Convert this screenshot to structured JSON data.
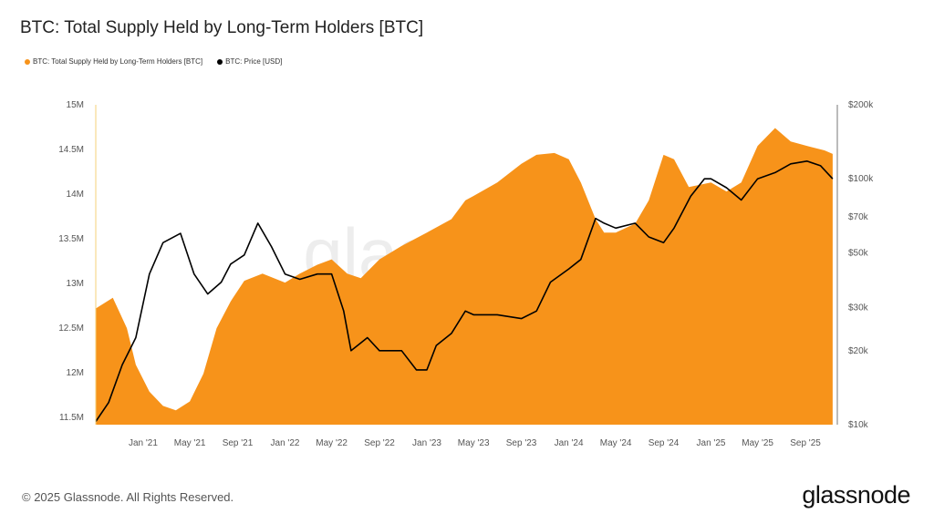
{
  "title": "BTC: Total Supply Held by Long-Term Holders [BTC]",
  "legend": [
    {
      "label": "BTC: Total Supply Held by Long-Term Holders [BTC]",
      "color": "#f7931a"
    },
    {
      "label": "BTC: Price [USD]",
      "color": "#000000"
    }
  ],
  "footer": "© 2025 Glassnode. All Rights Reserved.",
  "logo": "glassnode",
  "watermark": "glassnode",
  "chart_data": {
    "type": "area+line",
    "title": "BTC: Total Supply Held by Long-Term Holders [BTC]",
    "x_range": [
      "2020-09-01",
      "2025-11-15"
    ],
    "x_ticks": [
      {
        "date": "2021-01-01",
        "label": "Jan '21"
      },
      {
        "date": "2021-05-01",
        "label": "May '21"
      },
      {
        "date": "2021-09-01",
        "label": "Sep '21"
      },
      {
        "date": "2022-01-01",
        "label": "Jan '22"
      },
      {
        "date": "2022-05-01",
        "label": "May '22"
      },
      {
        "date": "2022-09-01",
        "label": "Sep '22"
      },
      {
        "date": "2023-01-01",
        "label": "Jan '23"
      },
      {
        "date": "2023-05-01",
        "label": "May '23"
      },
      {
        "date": "2023-09-01",
        "label": "Sep '23"
      },
      {
        "date": "2024-01-01",
        "label": "Jan '24"
      },
      {
        "date": "2024-05-01",
        "label": "May '24"
      },
      {
        "date": "2024-09-01",
        "label": "Sep '24"
      },
      {
        "date": "2025-01-01",
        "label": "Jan '25"
      },
      {
        "date": "2025-05-01",
        "label": "May '25"
      },
      {
        "date": "2025-09-01",
        "label": "Sep '25"
      }
    ],
    "left_axis": {
      "unit": "BTC (millions)",
      "ylim": [
        11.42,
        15
      ],
      "scale": "linear",
      "ticks": [
        {
          "v": 15,
          "label": "15M"
        },
        {
          "v": 14.5,
          "label": "14.5M"
        },
        {
          "v": 14,
          "label": "14M"
        },
        {
          "v": 13.5,
          "label": "13.5M"
        },
        {
          "v": 13,
          "label": "13M"
        },
        {
          "v": 12.5,
          "label": "12.5M"
        },
        {
          "v": 12,
          "label": "12M"
        },
        {
          "v": 11.5,
          "label": "11.5M"
        }
      ]
    },
    "right_axis": {
      "unit": "USD (thousands)",
      "ylim": [
        10,
        200
      ],
      "scale": "log",
      "ticks": [
        {
          "v": 200,
          "label": "$200k"
        },
        {
          "v": 100,
          "label": "$100k"
        },
        {
          "v": 70,
          "label": "$70k"
        },
        {
          "v": 50,
          "label": "$50k"
        },
        {
          "v": 30,
          "label": "$30k"
        },
        {
          "v": 20,
          "label": "$20k"
        },
        {
          "v": 10,
          "label": "$10k"
        }
      ]
    },
    "grid": false,
    "legend_position": "top-left",
    "series": [
      {
        "name": "BTC: Total Supply Held by Long-Term Holders [BTC]",
        "type": "area",
        "axis": "left",
        "color": "#f7931a",
        "points": [
          [
            "2020-09-01",
            12.72
          ],
          [
            "2020-10-15",
            12.84
          ],
          [
            "2020-11-20",
            12.5
          ],
          [
            "2020-12-13",
            12.09
          ],
          [
            "2021-01-17",
            11.79
          ],
          [
            "2021-02-21",
            11.63
          ],
          [
            "2021-03-26",
            11.58
          ],
          [
            "2021-05-01",
            11.68
          ],
          [
            "2021-06-05",
            11.99
          ],
          [
            "2021-07-09",
            12.5
          ],
          [
            "2021-08-14",
            12.8
          ],
          [
            "2021-09-18",
            13.03
          ],
          [
            "2021-11-04",
            13.11
          ],
          [
            "2022-01-01",
            13.01
          ],
          [
            "2022-02-08",
            13.11
          ],
          [
            "2022-03-25",
            13.21
          ],
          [
            "2022-05-01",
            13.27
          ],
          [
            "2022-06-10",
            13.11
          ],
          [
            "2022-07-15",
            13.06
          ],
          [
            "2022-09-01",
            13.27
          ],
          [
            "2022-10-28",
            13.42
          ],
          [
            "2023-01-01",
            13.57
          ],
          [
            "2023-03-05",
            13.72
          ],
          [
            "2023-04-10",
            13.93
          ],
          [
            "2023-05-01",
            13.98
          ],
          [
            "2023-07-01",
            14.13
          ],
          [
            "2023-09-01",
            14.34
          ],
          [
            "2023-10-10",
            14.44
          ],
          [
            "2023-11-25",
            14.46
          ],
          [
            "2024-01-01",
            14.39
          ],
          [
            "2024-02-01",
            14.13
          ],
          [
            "2024-03-10",
            13.72
          ],
          [
            "2024-04-01",
            13.57
          ],
          [
            "2024-05-01",
            13.57
          ],
          [
            "2024-06-20",
            13.67
          ],
          [
            "2024-07-25",
            13.93
          ],
          [
            "2024-09-01",
            14.44
          ],
          [
            "2024-09-28",
            14.39
          ],
          [
            "2024-11-05",
            14.08
          ],
          [
            "2025-01-01",
            14.13
          ],
          [
            "2025-02-10",
            14.03
          ],
          [
            "2025-03-20",
            14.13
          ],
          [
            "2025-05-01",
            14.54
          ],
          [
            "2025-06-15",
            14.74
          ],
          [
            "2025-07-25",
            14.59
          ],
          [
            "2025-09-05",
            14.54
          ],
          [
            "2025-10-20",
            14.49
          ],
          [
            "2025-11-10",
            14.45
          ]
        ]
      },
      {
        "name": "BTC: Price [USD]",
        "type": "line",
        "axis": "right",
        "color": "#000000",
        "points": [
          [
            "2020-09-01",
            10.3
          ],
          [
            "2020-10-04",
            12.3
          ],
          [
            "2020-11-08",
            17.5
          ],
          [
            "2020-12-13",
            22.6
          ],
          [
            "2021-01-17",
            41
          ],
          [
            "2021-02-21",
            55
          ],
          [
            "2021-04-07",
            60
          ],
          [
            "2021-05-12",
            41
          ],
          [
            "2021-06-16",
            34
          ],
          [
            "2021-07-21",
            38
          ],
          [
            "2021-08-14",
            45
          ],
          [
            "2021-09-18",
            49
          ],
          [
            "2021-10-23",
            66
          ],
          [
            "2021-11-27",
            53
          ],
          [
            "2022-01-01",
            41
          ],
          [
            "2022-02-08",
            39
          ],
          [
            "2022-03-25",
            41
          ],
          [
            "2022-05-01",
            41
          ],
          [
            "2022-06-01",
            29
          ],
          [
            "2022-06-20",
            20
          ],
          [
            "2022-08-01",
            22.6
          ],
          [
            "2022-09-01",
            20
          ],
          [
            "2022-10-28",
            20
          ],
          [
            "2022-12-05",
            16.7
          ],
          [
            "2023-01-01",
            16.7
          ],
          [
            "2023-01-25",
            21
          ],
          [
            "2023-03-05",
            23.5
          ],
          [
            "2023-04-10",
            29
          ],
          [
            "2023-05-01",
            28
          ],
          [
            "2023-07-01",
            28
          ],
          [
            "2023-09-01",
            27
          ],
          [
            "2023-10-10",
            29
          ],
          [
            "2023-11-15",
            38
          ],
          [
            "2024-01-01",
            43
          ],
          [
            "2024-02-01",
            47
          ],
          [
            "2024-03-10",
            69
          ],
          [
            "2024-04-01",
            66
          ],
          [
            "2024-05-01",
            63
          ],
          [
            "2024-06-20",
            66
          ],
          [
            "2024-07-25",
            58
          ],
          [
            "2024-09-01",
            55
          ],
          [
            "2024-09-28",
            63
          ],
          [
            "2024-11-10",
            85
          ],
          [
            "2024-12-15",
            100
          ],
          [
            "2025-01-01",
            100
          ],
          [
            "2025-02-10",
            92
          ],
          [
            "2025-03-20",
            82
          ],
          [
            "2025-05-01",
            100
          ],
          [
            "2025-06-15",
            106
          ],
          [
            "2025-07-25",
            115
          ],
          [
            "2025-09-05",
            118
          ],
          [
            "2025-10-10",
            113
          ],
          [
            "2025-11-10",
            100
          ]
        ]
      }
    ]
  }
}
